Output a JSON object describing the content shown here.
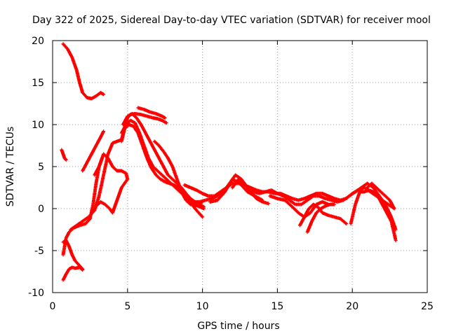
{
  "chart_data": {
    "type": "scatter",
    "title": "Day 322 of 2025, Sidereal Day-to-day VTEC variation (SDTVAR) for receiver mool",
    "xlabel": "GPS time / hours",
    "ylabel": "SDTVAR / TECUs",
    "xlim": [
      0,
      25
    ],
    "ylim": [
      -10,
      20
    ],
    "xticks": [
      "0",
      "5",
      "10",
      "15",
      "20",
      "25"
    ],
    "yticks": [
      "-10",
      "-5",
      "0",
      "5",
      "10",
      "15",
      "20"
    ],
    "grid": true,
    "marker": "+",
    "series_color": "#ff0000",
    "series": [
      {
        "name": "trace-1",
        "x": [
          0.7,
          1.0,
          1.3,
          1.6,
          1.8,
          2.0,
          2.3,
          2.6,
          2.9,
          3.2,
          3.4
        ],
        "y": [
          19.6,
          19.0,
          18.0,
          16.5,
          15.0,
          13.8,
          13.2,
          13.1,
          13.4,
          13.8,
          13.6
        ]
      },
      {
        "name": "trace-2",
        "x": [
          0.6,
          0.7,
          0.8,
          0.9
        ],
        "y": [
          7.0,
          6.5,
          6.0,
          5.8
        ]
      },
      {
        "name": "trace-3",
        "x": [
          0.7,
          0.9,
          1.1,
          1.3,
          1.5,
          1.8,
          2.0
        ],
        "y": [
          -4.0,
          -3.8,
          -4.5,
          -5.5,
          -6.2,
          -6.8,
          -7.2
        ]
      },
      {
        "name": "trace-4",
        "x": [
          0.7,
          0.9,
          1.1,
          1.3,
          1.5,
          1.8,
          2.0
        ],
        "y": [
          -8.5,
          -7.8,
          -7.2,
          -7.0,
          -7.1,
          -7.0,
          -7.3
        ]
      },
      {
        "name": "trace-5",
        "x": [
          0.7,
          0.9,
          1.1,
          1.4,
          1.8,
          2.2,
          2.5,
          2.7,
          2.9,
          3.1,
          3.3
        ],
        "y": [
          -5.5,
          -3.5,
          -2.8,
          -2.3,
          -2.0,
          -1.8,
          -1.2,
          0.5,
          3.0,
          5.0,
          6.0
        ]
      },
      {
        "name": "trace-6",
        "x": [
          2.0,
          2.3,
          2.6,
          2.9,
          3.2,
          3.4
        ],
        "y": [
          4.5,
          5.5,
          6.5,
          7.5,
          8.5,
          9.2
        ]
      },
      {
        "name": "trace-7",
        "x": [
          1.2,
          1.6,
          2.0,
          2.4,
          2.8,
          3.1,
          3.4,
          3.7,
          4.0,
          4.3,
          4.6,
          4.8,
          5.0,
          5.2,
          5.5,
          5.9,
          6.3,
          6.7,
          7.0,
          7.3,
          7.6
        ],
        "y": [
          -2.5,
          -2.0,
          -1.5,
          -1.0,
          -0.2,
          1.5,
          4.0,
          6.5,
          7.8,
          8.0,
          8.2,
          9.5,
          10.8,
          11.2,
          11.3,
          11.2,
          11.0,
          10.8,
          10.7,
          10.5,
          10.2
        ]
      },
      {
        "name": "trace-8",
        "x": [
          5.7,
          6.1,
          6.5,
          6.9,
          7.3,
          7.5
        ],
        "y": [
          12.0,
          11.8,
          11.5,
          11.3,
          11.0,
          10.8
        ]
      },
      {
        "name": "trace-9",
        "x": [
          2.8,
          3.1,
          3.4,
          3.7,
          4.0,
          4.3,
          4.6,
          4.9,
          5.0
        ],
        "y": [
          4.0,
          5.0,
          6.5,
          6.0,
          5.0,
          4.5,
          4.5,
          4.2,
          3.5
        ]
      },
      {
        "name": "trace-10",
        "x": [
          2.9,
          3.2,
          3.5,
          3.8,
          4.0,
          4.2,
          4.4,
          4.6,
          4.8,
          5.0
        ],
        "y": [
          0.3,
          0.8,
          0.5,
          0.0,
          -0.5,
          0.5,
          1.5,
          2.5,
          3.0,
          3.5
        ]
      },
      {
        "name": "trace-11",
        "x": [
          4.6,
          4.8,
          5.1,
          5.4,
          5.7,
          6.0,
          6.3,
          6.6,
          6.9,
          7.2,
          7.5,
          7.8,
          8.1,
          8.4,
          8.7,
          9.0,
          9.3,
          9.6,
          10.0
        ],
        "y": [
          8.0,
          9.5,
          10.0,
          9.8,
          9.0,
          7.5,
          6.0,
          4.8,
          4.0,
          3.5,
          3.2,
          3.0,
          2.8,
          2.5,
          2.0,
          1.2,
          0.5,
          -0.2,
          -1.0
        ]
      },
      {
        "name": "trace-12",
        "x": [
          4.6,
          4.9,
          5.2,
          5.5,
          5.8,
          6.1,
          6.4,
          6.7,
          7.0,
          7.3,
          7.6,
          7.9,
          8.2,
          8.5,
          8.8,
          9.1,
          9.4,
          9.7,
          10.1
        ],
        "y": [
          9.0,
          10.0,
          10.5,
          10.2,
          9.0,
          7.5,
          6.0,
          5.0,
          4.5,
          4.0,
          3.5,
          3.0,
          2.5,
          2.0,
          1.5,
          1.0,
          0.5,
          0.3,
          0.0
        ]
      },
      {
        "name": "trace-13",
        "x": [
          4.7,
          5.0,
          5.3,
          5.6,
          5.9,
          6.2,
          6.5,
          6.8,
          7.1,
          7.4,
          7.7,
          8.0,
          8.3,
          8.6,
          8.9,
          9.2,
          9.5,
          9.8,
          10.1
        ],
        "y": [
          10.0,
          11.0,
          11.3,
          10.8,
          10.0,
          9.0,
          8.0,
          7.0,
          6.0,
          5.0,
          4.0,
          3.5,
          3.0,
          2.5,
          1.8,
          1.2,
          0.8,
          0.5,
          0.2
        ]
      },
      {
        "name": "trace-14",
        "x": [
          6.8,
          7.1,
          7.4,
          7.7,
          8.0,
          8.3,
          8.6,
          8.9,
          9.2,
          9.6,
          10.0
        ],
        "y": [
          8.0,
          7.5,
          6.8,
          6.0,
          5.0,
          3.5,
          2.0,
          1.0,
          0.5,
          0.5,
          0.8
        ]
      },
      {
        "name": "trace-15",
        "x": [
          8.8,
          9.2,
          9.6,
          10.0,
          10.4,
          10.8,
          11.2,
          11.6,
          12.0,
          12.4,
          12.8,
          13.2,
          13.6,
          14.0,
          14.4,
          14.8,
          15.2,
          15.6,
          16.0,
          16.4,
          16.8,
          17.2,
          17.6,
          18.0,
          18.4,
          18.8,
          19.2,
          19.6,
          20.0,
          20.4,
          20.8,
          21.2,
          21.6,
          22.0,
          22.4,
          22.8
        ],
        "y": [
          2.8,
          2.5,
          2.2,
          1.8,
          1.5,
          1.5,
          2.0,
          2.5,
          3.0,
          3.0,
          2.8,
          2.5,
          2.2,
          2.0,
          2.0,
          1.8,
          1.8,
          1.5,
          1.2,
          1.0,
          1.2,
          1.5,
          1.8,
          1.8,
          1.5,
          1.2,
          1.0,
          1.2,
          1.8,
          2.2,
          2.5,
          2.0,
          1.5,
          1.0,
          0.5,
          0.0
        ]
      },
      {
        "name": "trace-16",
        "x": [
          9.0,
          9.4,
          9.8,
          10.2,
          10.6,
          11.0,
          11.4,
          11.8,
          12.2,
          12.6,
          13.0,
          13.4,
          13.8,
          14.2,
          14.6,
          15.0,
          15.4,
          15.8,
          16.2,
          16.6,
          17.0,
          17.4,
          17.8,
          18.2,
          18.6,
          19.0,
          19.4,
          19.8,
          20.2,
          20.6,
          21.0,
          21.4,
          21.8,
          22.2,
          22.6,
          22.9
        ],
        "y": [
          1.0,
          0.8,
          0.8,
          1.0,
          1.2,
          1.5,
          2.0,
          3.0,
          4.0,
          3.5,
          2.5,
          2.0,
          1.8,
          2.0,
          2.2,
          1.8,
          1.5,
          1.0,
          0.5,
          0.5,
          1.0,
          1.5,
          1.5,
          1.2,
          1.0,
          0.8,
          1.0,
          1.5,
          2.0,
          2.5,
          3.0,
          2.5,
          1.5,
          0.5,
          -1.0,
          -2.5
        ]
      },
      {
        "name": "trace-17",
        "x": [
          10.5,
          11.0,
          11.5,
          12.0,
          12.5,
          13.0,
          13.5,
          14.0
        ],
        "y": [
          0.8,
          1.0,
          2.0,
          3.5,
          3.0,
          2.0,
          1.5,
          1.0
        ]
      },
      {
        "name": "trace-18",
        "x": [
          12.0,
          12.4,
          12.8,
          13.2,
          13.6,
          14.0,
          14.4
        ],
        "y": [
          2.5,
          3.5,
          3.0,
          2.0,
          1.2,
          0.8,
          0.6
        ]
      },
      {
        "name": "trace-19",
        "x": [
          14.5,
          15.0,
          15.5,
          16.0,
          16.4,
          16.8,
          17.2,
          17.6,
          18.0,
          18.4
        ],
        "y": [
          1.5,
          1.2,
          1.0,
          0.2,
          -0.5,
          -1.0,
          -0.5,
          0.5,
          0.8,
          0.5
        ]
      },
      {
        "name": "trace-20",
        "x": [
          16.5,
          16.8,
          17.1,
          17.4,
          17.7,
          18.0,
          18.4,
          18.8,
          19.2,
          19.6
        ],
        "y": [
          -2.0,
          -1.0,
          0.0,
          0.5,
          0.2,
          -0.5,
          -0.8,
          -1.0,
          -1.2,
          -1.8
        ]
      },
      {
        "name": "trace-21",
        "x": [
          17.0,
          17.3,
          17.6,
          17.9,
          18.2,
          18.5,
          18.8
        ],
        "y": [
          -2.8,
          -1.5,
          -0.5,
          0.0,
          0.3,
          0.5,
          0.5
        ]
      },
      {
        "name": "trace-22",
        "x": [
          19.9,
          20.2,
          20.5,
          20.8,
          21.1,
          21.4,
          21.7,
          22.0,
          22.3,
          22.6,
          22.9
        ],
        "y": [
          -1.8,
          0.5,
          2.0,
          2.0,
          2.2,
          2.0,
          1.5,
          0.5,
          -0.5,
          -1.5,
          -3.8
        ]
      },
      {
        "name": "trace-23",
        "x": [
          21.0,
          21.3,
          21.6,
          21.9,
          22.2,
          22.5,
          22.8
        ],
        "y": [
          2.5,
          3.0,
          2.5,
          2.0,
          1.5,
          1.0,
          0.0
        ]
      }
    ]
  }
}
